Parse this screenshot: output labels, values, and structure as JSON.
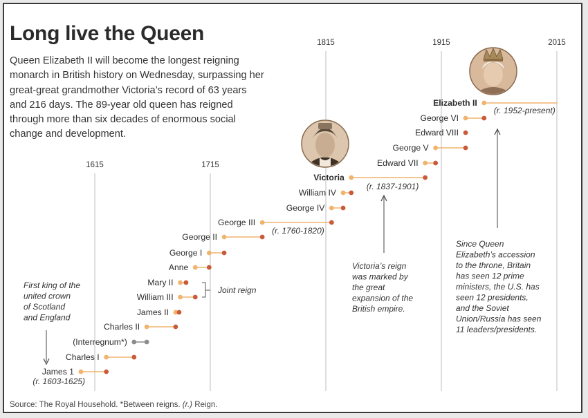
{
  "title": "Long live the Queen",
  "intro": "Queen Elizabeth II will become the longest reigning monarch in British history on Wednesday, surpassing her great-great grandmother Victoria’s record of 63 years and 216 days. The 89-year old queen has reigned through more than six decades of enormous social change and development.",
  "source_prefix": "Source: The Royal Household. *Between reigns.",
  "source_r": "(r.)",
  "source_suffix": "Reign.",
  "colors": {
    "start": "#f0b46e",
    "end": "#c95a3a",
    "interregnum": "#8c8c8c",
    "gridline": "#bdbdbd"
  },
  "chart_data": {
    "type": "timeline",
    "x_axis": {
      "range": [
        1603,
        2015
      ],
      "ticks": [
        "1615",
        "1715",
        "1815",
        "1915",
        "2015"
      ]
    },
    "grid": true,
    "reigns": [
      {
        "name": "James 1",
        "start": 1603,
        "end": 1625,
        "note": "(r. 1603-1625)"
      },
      {
        "name": "Charles I",
        "start": 1625,
        "end": 1649
      },
      {
        "name": "(Interregnum*)",
        "start": 1649,
        "end": 1660,
        "interregnum": true
      },
      {
        "name": "Charles II",
        "start": 1660,
        "end": 1685
      },
      {
        "name": "James II",
        "start": 1685,
        "end": 1688
      },
      {
        "name": "William III",
        "start": 1689,
        "end": 1702
      },
      {
        "name": "Mary II",
        "start": 1689,
        "end": 1694
      },
      {
        "name": "Anne",
        "start": 1702,
        "end": 1714
      },
      {
        "name": "George I",
        "start": 1714,
        "end": 1727
      },
      {
        "name": "George II",
        "start": 1727,
        "end": 1760
      },
      {
        "name": "George III",
        "start": 1760,
        "end": 1820,
        "note": "(r. 1760-1820)"
      },
      {
        "name": "George IV",
        "start": 1820,
        "end": 1830
      },
      {
        "name": "William IV",
        "start": 1830,
        "end": 1837
      },
      {
        "name": "Victoria",
        "start": 1837,
        "end": 1901,
        "bold": true,
        "note": "(r. 1837-1901)"
      },
      {
        "name": "Edward VII",
        "start": 1901,
        "end": 1910
      },
      {
        "name": "George V",
        "start": 1910,
        "end": 1936
      },
      {
        "name": "Edward VIII",
        "start": 1936,
        "end": 1936
      },
      {
        "name": "George VI",
        "start": 1936,
        "end": 1952
      },
      {
        "name": "Elizabeth II",
        "start": 1952,
        "end": 2015,
        "bold": true,
        "ongoing": true,
        "note": "(r. 1952-present)"
      }
    ],
    "annotations": {
      "first_king": [
        "First king of the",
        "united crown",
        "of Scotland",
        "and England"
      ],
      "joint_reign": "Joint reign",
      "victoria_reign": [
        "Victoria’s reign",
        "was marked by",
        "the great",
        "expansion of the",
        "British empire."
      ],
      "elizabeth_fact": [
        "Since Queen",
        "Elizabeth’s accession",
        "to the throne, Britain",
        "has seen 12 prime",
        "ministers, the U.S. has",
        "seen 12 presidents,",
        "and the Soviet",
        "Union/Russia has seen",
        "11 leaders/presidents."
      ]
    }
  }
}
